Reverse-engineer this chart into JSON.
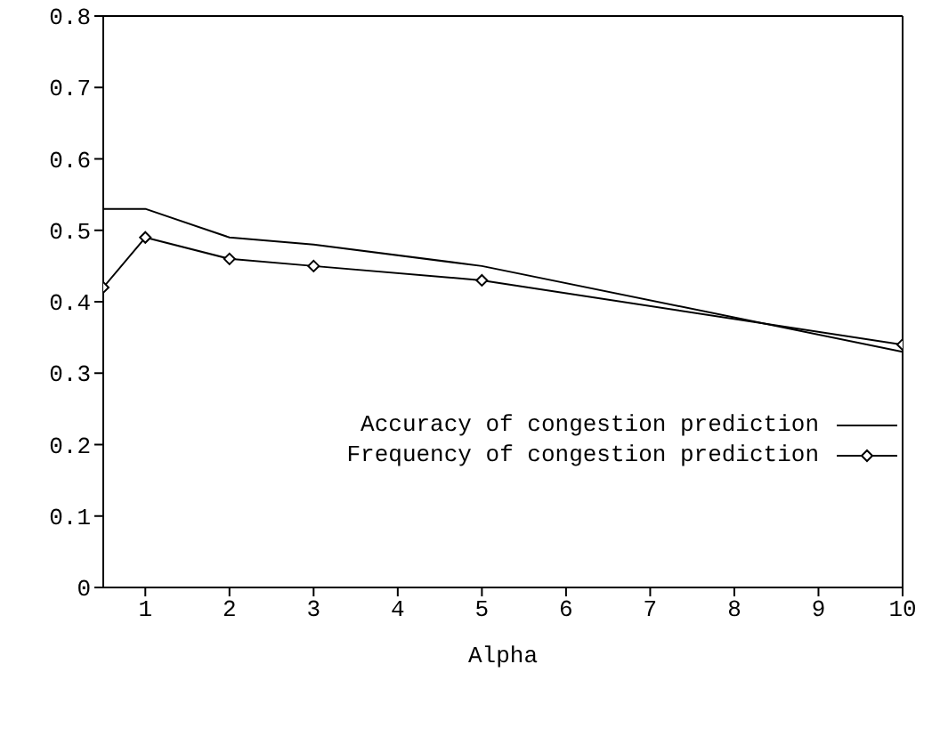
{
  "chart_data": {
    "type": "line",
    "xlabel": "Alpha",
    "x": [
      0.5,
      1,
      2,
      3,
      5,
      10
    ],
    "series": [
      {
        "name": "Accuracy of congestion prediction",
        "color": "#000000",
        "marker": "none",
        "values": [
          0.53,
          0.53,
          0.49,
          0.48,
          0.45,
          0.33
        ]
      },
      {
        "name": "Frequency of congestion prediction",
        "color": "#000000",
        "marker": "diamond",
        "values": [
          0.42,
          0.49,
          0.46,
          0.45,
          0.43,
          0.34
        ]
      }
    ],
    "xlim": [
      0.5,
      10
    ],
    "xticks": [
      1,
      2,
      3,
      4,
      5,
      6,
      7,
      8,
      9,
      10
    ],
    "ylim": [
      0,
      0.8
    ],
    "yticks": [
      0,
      0.1,
      0.2,
      0.3,
      0.4,
      0.5,
      0.6,
      0.7,
      0.8
    ],
    "grid": false,
    "legend": "bottom right",
    "line_style": "solid"
  }
}
